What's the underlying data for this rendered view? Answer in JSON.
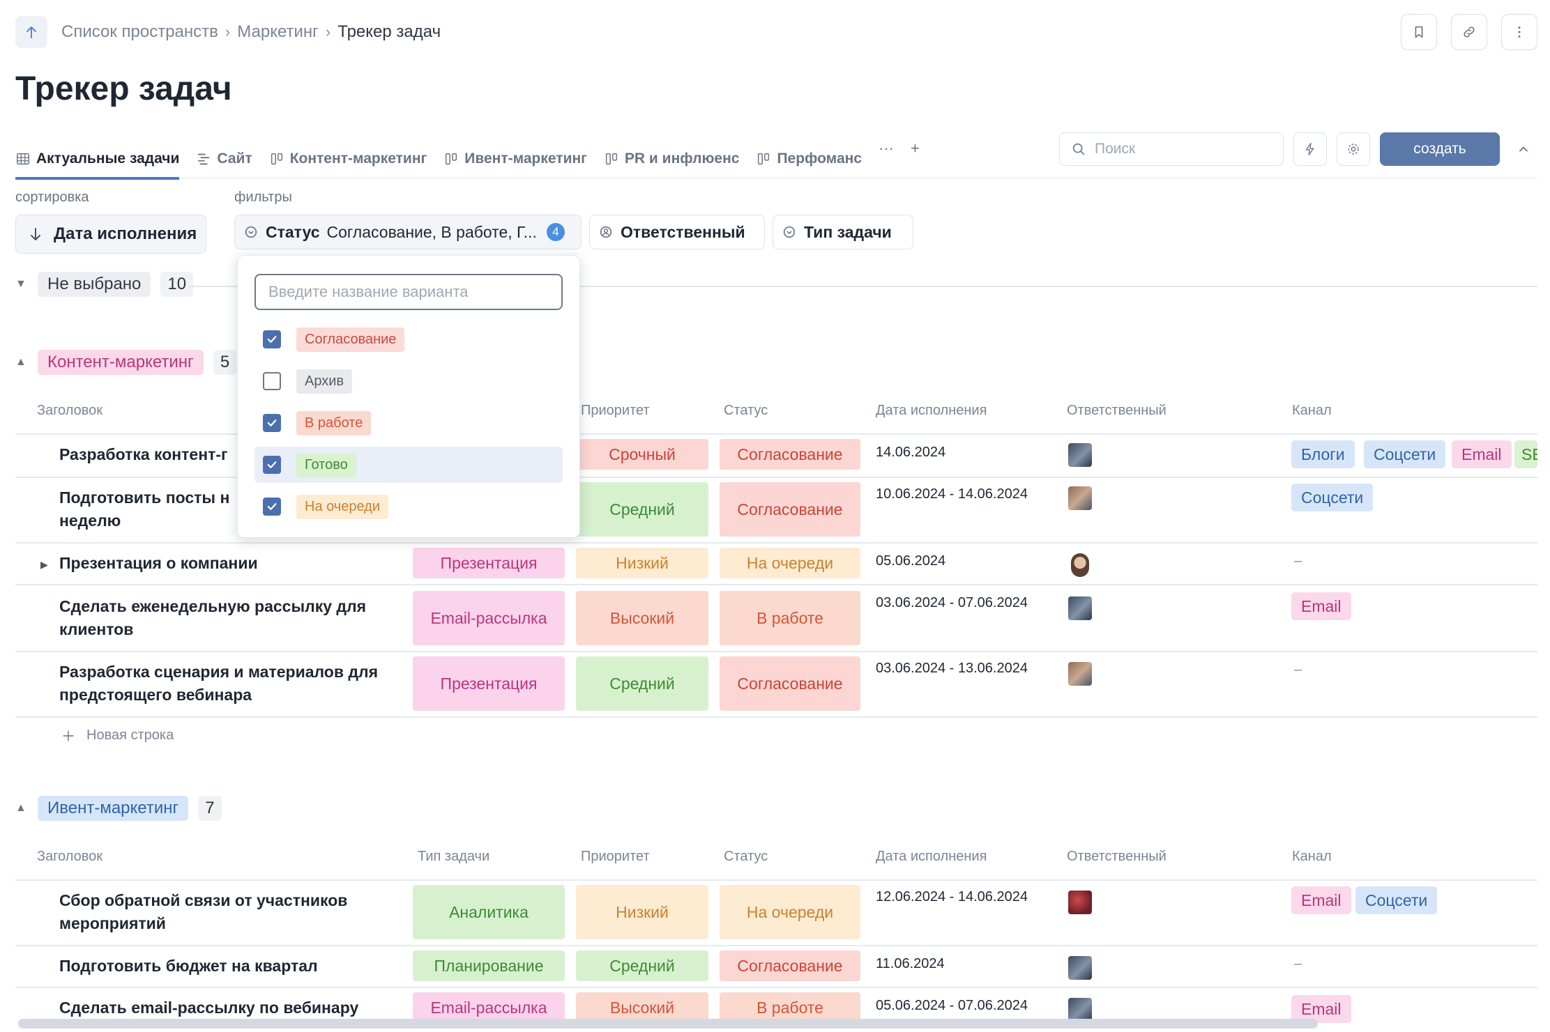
{
  "breadcrumb": {
    "items": [
      "Список пространств",
      "Маркетинг",
      "Трекер задач"
    ]
  },
  "page_title": "Трекер задач",
  "tabs": [
    {
      "label": "Актуальные задачи",
      "icon": "table-icon",
      "active": true
    },
    {
      "label": "Сайт",
      "icon": "gantt-icon"
    },
    {
      "label": "Контент-маркетинг",
      "icon": "kanban-icon"
    },
    {
      "label": "Ивент-маркетинг",
      "icon": "kanban-icon"
    },
    {
      "label": "PR и инфлюенс",
      "icon": "kanban-icon"
    },
    {
      "label": "Перфоманс",
      "icon": "kanban-icon"
    }
  ],
  "tab_more": "···",
  "tab_add": "+",
  "search": {
    "placeholder": "Поиск"
  },
  "create_label": "создать",
  "sort": {
    "label": "сортировка",
    "value": "Дата исполнения"
  },
  "filters": {
    "label": "фильтры",
    "status": {
      "name": "Статус",
      "value": "Согласование, В работе, Г...",
      "count": "4"
    },
    "responsible": {
      "name": "Ответственный"
    },
    "task_type": {
      "name": "Тип задачи"
    }
  },
  "dropdown": {
    "placeholder": "Введите название варианта",
    "options": [
      {
        "label": "Согласование",
        "checked": true,
        "bg": "#fadbd8",
        "fg": "#c94a3f"
      },
      {
        "label": "Архив",
        "checked": false,
        "bg": "#e8eaed",
        "fg": "#555b65"
      },
      {
        "label": "В работе",
        "checked": true,
        "bg": "#fbd9cf",
        "fg": "#d2553a"
      },
      {
        "label": "Готово",
        "checked": true,
        "bg": "#d9f2d0",
        "fg": "#3f8a33"
      },
      {
        "label": "На очереди",
        "checked": true,
        "bg": "#fdebd2",
        "fg": "#c8822e"
      }
    ]
  },
  "groups": {
    "unselected": {
      "label": "Не выбрано",
      "count": "10"
    },
    "content": {
      "label": "Контент-маркетинг",
      "count": "5"
    },
    "event": {
      "label": "Ивент-маркетинг",
      "count": "7"
    }
  },
  "columns": {
    "title": "Заголовок",
    "type": "Тип задачи",
    "priority": "Приоритет",
    "status": "Статус",
    "date": "Дата исполнения",
    "responsible": "Ответственный",
    "channel": "Канал"
  },
  "content_rows": [
    {
      "title": "Разработка контент-г",
      "priority": "Срочный",
      "status": "Согласование",
      "date": "14.06.2024",
      "channels": [
        "Блоги",
        "Соцсети",
        "Email",
        "SE"
      ]
    },
    {
      "title": "Подготовить посты н",
      "title2": "неделю",
      "priority": "Средний",
      "status": "Согласование",
      "date": "10.06.2024 - 14.06.2024",
      "channels": [
        "Соцсети"
      ]
    },
    {
      "title": "Презентация о компании",
      "type": "Презентация",
      "priority": "Низкий",
      "status": "На очереди",
      "date": "05.06.2024",
      "channels": []
    },
    {
      "title": "Сделать еженедельную рассылку для",
      "title2": "клиентов",
      "type": "Email-рассылка",
      "priority": "Высокий",
      "status": "В работе",
      "date": "03.06.2024 - 07.06.2024",
      "channels": [
        "Email"
      ]
    },
    {
      "title": "Разработка сценария и материалов для",
      "title2": "предстоящего вебинара",
      "type": "Презентация",
      "priority": "Средний",
      "status": "Согласование",
      "date": "03.06.2024 - 13.06.2024",
      "channels": []
    }
  ],
  "new_row": "Новая строка",
  "dash": "–",
  "event_rows": [
    {
      "title": "Сбор обратной связи от участников",
      "title2": "мероприятий",
      "type": "Аналитика",
      "priority": "Низкий",
      "status": "На очереди",
      "date": "12.06.2024 - 14.06.2024",
      "channels": [
        "Email",
        "Соцсети"
      ]
    },
    {
      "title": "Подготовить бюджет на квартал",
      "type": "Планирование",
      "priority": "Средний",
      "status": "Согласование",
      "date": "11.06.2024",
      "channels": []
    },
    {
      "title": "Сделать email-рассылку по вебинару",
      "type": "Email-рассылка",
      "priority": "Высокий",
      "status": "В работе",
      "date": "05.06.2024 - 07.06.2024",
      "channels": [
        "Email"
      ]
    }
  ]
}
